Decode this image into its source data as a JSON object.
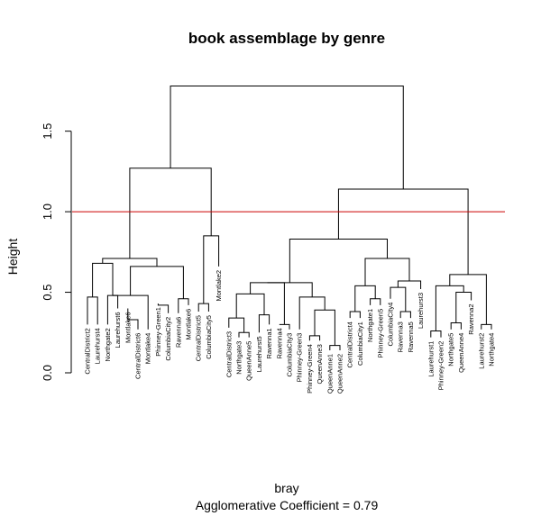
{
  "chart_data": {
    "type": "dendrogram",
    "title": "book assemblage by genre",
    "ylabel": "Height",
    "xlabel": "bray",
    "subtitle": "Agglomerative Coefficient =  0.79",
    "ylim": [
      0,
      1.8
    ],
    "yticks": [
      "0.0",
      "0.5",
      "1.0",
      "1.5"
    ],
    "cut_height": 1.0,
    "cut_color": "#cc0000",
    "line_color": "#000000",
    "leaves": [
      {
        "label": "CentralDistrict2",
        "height": 0.3
      },
      {
        "label": "Laurehurst4",
        "height": 0.3
      },
      {
        "label": "Northgate2",
        "height": 0.3
      },
      {
        "label": "Laurehurst6",
        "height": 0.4
      },
      {
        "label": "Montlake6",
        "height": 0.4
      },
      {
        "label": "CentralDistrict6",
        "height": 0.27
      },
      {
        "label": "Montlake4",
        "height": 0.27
      },
      {
        "label": "Phinney-Green1",
        "height": 0.43
      },
      {
        "label": "ColumbiaCity2",
        "height": 0.37
      },
      {
        "label": "Ravenna6",
        "height": 0.37
      },
      {
        "label": "Montlake6",
        "height": 0.42
      },
      {
        "label": "CentralDistrict5",
        "height": 0.38
      },
      {
        "label": "ColumbiaCity5",
        "height": 0.38
      },
      {
        "label": "Montlake2",
        "height": 0.66
      },
      {
        "label": "CentralDistrict3",
        "height": 0.28
      },
      {
        "label": "Northgate3",
        "height": 0.22
      },
      {
        "label": "QueenAnne5",
        "height": 0.22
      },
      {
        "label": "Laurehurst5",
        "height": 0.25
      },
      {
        "label": "Ravenna1",
        "height": 0.3
      },
      {
        "label": "Ravenna4",
        "height": 0.3
      },
      {
        "label": "ColumbiaCity3",
        "height": 0.27
      },
      {
        "label": "Phinney-Green3",
        "height": 0.27
      },
      {
        "label": "Phinney-Green4",
        "height": 0.2
      },
      {
        "label": "QueenAnne3",
        "height": 0.2
      },
      {
        "label": "QueenAnne1",
        "height": 0.14
      },
      {
        "label": "QueenAnne2",
        "height": 0.14
      },
      {
        "label": "CentralDistrict4",
        "height": 0.34
      },
      {
        "label": "ColumbiaCity1",
        "height": 0.34
      },
      {
        "label": "Northgate1",
        "height": 0.42
      },
      {
        "label": "Phinney-Green5",
        "height": 0.42
      },
      {
        "label": "ColumbiaCity4",
        "height": 0.46
      },
      {
        "label": "Ravenna3",
        "height": 0.34
      },
      {
        "label": "Ravenna5",
        "height": 0.34
      },
      {
        "label": "Laurehurst3",
        "height": 0.52
      },
      {
        "label": "Laurehurst1",
        "height": 0.22
      },
      {
        "label": "Phinney-Green2",
        "height": 0.22
      },
      {
        "label": "Northgate5",
        "height": 0.27
      },
      {
        "label": "QueenAnne4",
        "height": 0.27
      },
      {
        "label": "Ravenna2",
        "height": 0.45
      },
      {
        "label": "Laurehurst2",
        "height": 0.27
      },
      {
        "label": "Northgate4",
        "height": 0.27
      }
    ],
    "merges": [
      {
        "l": 0,
        "r": 1,
        "h": 0.47
      },
      {
        "l": 2,
        "r": 3,
        "h": 0.48
      },
      {
        "l": 4,
        "r": 5,
        "h": 0.33
      },
      {
        "l": 7,
        "r": 8,
        "h": 0.42
      },
      {
        "l": 9,
        "r": 10,
        "h": 0.46
      },
      {
        "l": 11,
        "r": 12,
        "h": 0.43
      },
      {
        "l": 6,
        "r": "m2",
        "h": 0.48
      },
      {
        "l": "m7",
        "r": "m5",
        "h": 0.66
      },
      {
        "l": "m1",
        "r": "m2",
        "h": 0.68
      },
      {
        "l": "m9",
        "r": "m8",
        "h": 0.71
      },
      {
        "l": "m6",
        "r": 13,
        "h": 0.85
      },
      {
        "l": "m10",
        "r": "m11",
        "h": 1.27
      },
      {
        "l": 15,
        "r": 16,
        "h": 0.25
      },
      {
        "l": 14,
        "r": "m13",
        "h": 0.34
      },
      {
        "l": 17,
        "r": 18,
        "h": 0.36
      },
      {
        "l": 19,
        "r": 20,
        "h": 0.3
      },
      {
        "l": 22,
        "r": 23,
        "h": 0.23
      },
      {
        "l": 24,
        "r": 25,
        "h": 0.17
      },
      {
        "l": "m17",
        "r": "m18",
        "h": 0.39
      },
      {
        "l": 21,
        "r": "m19",
        "h": 0.47
      },
      {
        "l": "m14",
        "r": "m15",
        "h": 0.49
      },
      {
        "l": "m21",
        "r": "m16",
        "h": 0.56
      },
      {
        "l": "m22",
        "r": "m20",
        "h": 0.56
      },
      {
        "l": 26,
        "r": 27,
        "h": 0.38
      },
      {
        "l": 28,
        "r": 29,
        "h": 0.46
      },
      {
        "l": 31,
        "r": 32,
        "h": 0.38
      },
      {
        "l": 30,
        "r": "m26",
        "h": 0.53
      },
      {
        "l": "m24",
        "r": "m25",
        "h": 0.54
      },
      {
        "l": "m27",
        "r": 33,
        "h": 0.57
      },
      {
        "l": "m28",
        "r": "m29",
        "h": 0.71
      },
      {
        "l": "m23",
        "r": "m30",
        "h": 0.83
      },
      {
        "l": 34,
        "r": 35,
        "h": 0.26
      },
      {
        "l": 36,
        "r": 37,
        "h": 0.31
      },
      {
        "l": 39,
        "r": 40,
        "h": 0.3
      },
      {
        "l": "m33",
        "r": 38,
        "h": 0.5
      },
      {
        "l": "m32",
        "r": "m35",
        "h": 0.54
      },
      {
        "l": "m36",
        "r": "m34",
        "h": 0.61
      },
      {
        "l": "m31",
        "r": "m37",
        "h": 1.14
      },
      {
        "l": "m12",
        "r": "m38",
        "h": 1.78
      }
    ]
  }
}
